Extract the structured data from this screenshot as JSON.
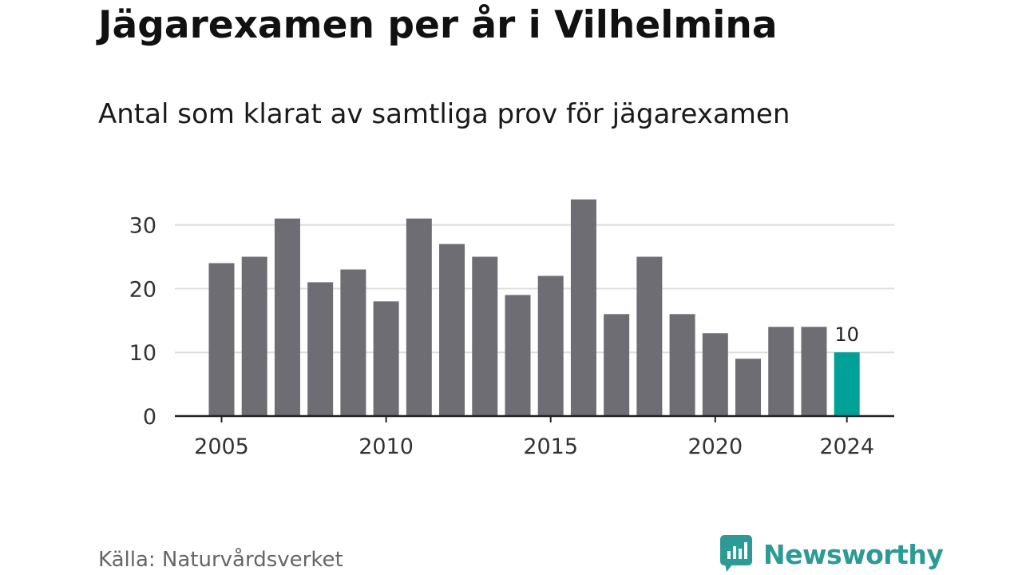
{
  "title": "Jägarexamen per år i Vilhelmina",
  "subtitle": "Antal som klarat av samtliga prov för jägarexamen",
  "source": "Källa: Naturvårdsverket",
  "brand": {
    "name": "Newsworthy",
    "icon": "newsworthy-logo-icon",
    "color": "#2c9a95"
  },
  "colors": {
    "bar": "#6e6d73",
    "highlight": "#00a199",
    "grid": "#dddddd",
    "axis": "#222222"
  },
  "chart_data": {
    "type": "bar",
    "categories": [
      2005,
      2006,
      2007,
      2008,
      2009,
      2010,
      2011,
      2012,
      2013,
      2014,
      2015,
      2016,
      2017,
      2018,
      2019,
      2020,
      2021,
      2022,
      2023,
      2024
    ],
    "values": [
      24,
      25,
      31,
      21,
      23,
      18,
      31,
      27,
      25,
      19,
      22,
      34,
      16,
      25,
      16,
      13,
      9,
      14,
      14,
      10
    ],
    "highlight_category": 2024,
    "data_labels": [
      {
        "category": 2024,
        "text": "10"
      }
    ],
    "x_ticks": [
      "2005",
      "2010",
      "2015",
      "2020",
      "2024"
    ],
    "y_ticks": [
      "0",
      "10",
      "20",
      "30"
    ],
    "ylim": [
      0,
      35
    ],
    "grid": true,
    "xlabel": "",
    "ylabel": ""
  }
}
